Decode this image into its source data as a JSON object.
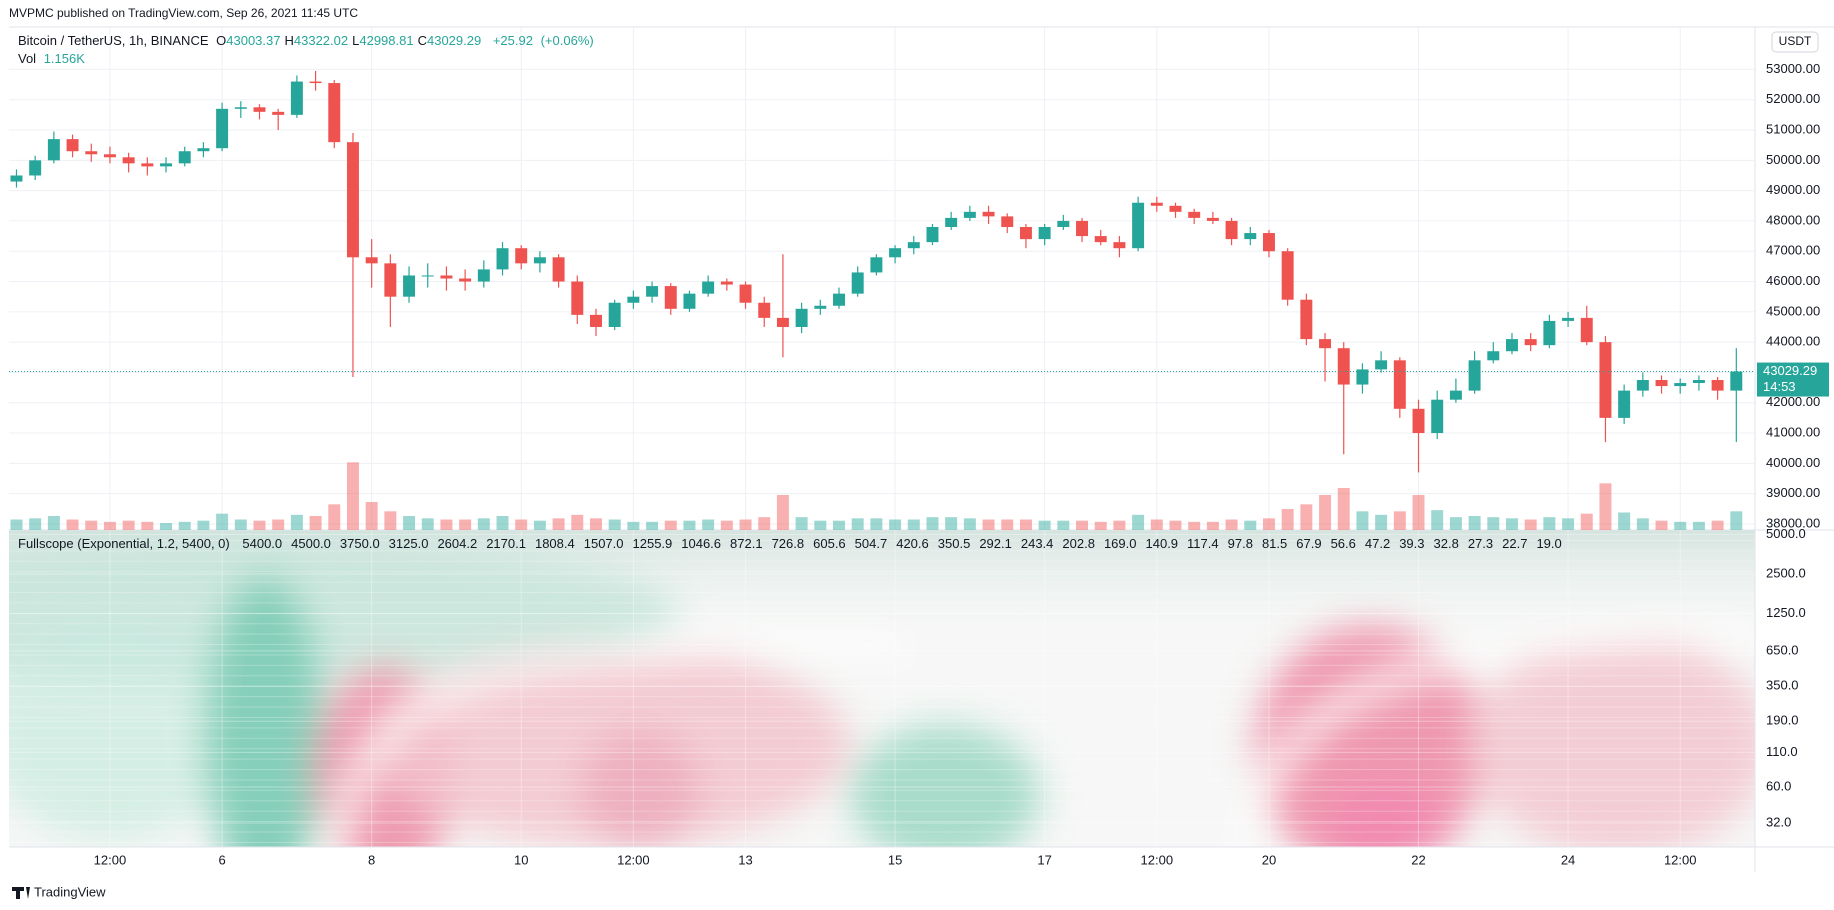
{
  "chart_data": {
    "type": "candlestick",
    "source": "MVPMC published on TradingView.com, Sep 26, 2021 11:45 UTC",
    "symbol": "Bitcoin / TetherUS, 1h, BINANCE",
    "legend": [
      {
        "key": "O",
        "value": 43003.37
      },
      {
        "key": "H",
        "value": 43322.02
      },
      {
        "key": "L",
        "value": 42998.81
      },
      {
        "key": "C",
        "value": 43029.29
      }
    ],
    "change": {
      "value": 25.92,
      "label": "+25.92"
    },
    "change_pct": {
      "value": 0.06,
      "label": "(+0.06%)"
    },
    "volume_label": "Vol",
    "volume_last": {
      "value": 1156,
      "label": "1.156K"
    },
    "currency": "USDT",
    "countdown": "14:53",
    "branding": "TradingView",
    "up_color": "#26a69a",
    "down_color": "#ef5350",
    "grid": true,
    "xlim": [
      3.15,
      26.5
    ],
    "xticks": [
      {
        "value": 4.5,
        "label": "12:00"
      },
      6,
      8,
      10,
      {
        "value": 11.5,
        "label": "12:00"
      },
      13,
      15,
      17,
      {
        "value": 18.5,
        "label": "12:00"
      },
      20,
      22,
      24,
      {
        "value": 25.5,
        "label": "12:00"
      }
    ],
    "ylim": [
      37800,
      54400
    ],
    "yticks": [
      {
        "value": 38000,
        "label": "38000.00"
      },
      {
        "value": 39000,
        "label": "39000.00"
      },
      {
        "value": 40000,
        "label": "40000.00"
      },
      {
        "value": 41000,
        "label": "41000.00"
      },
      {
        "value": 42000,
        "label": "42000.00"
      },
      {
        "value": 43000,
        "label": "43000.00"
      },
      {
        "value": 44000,
        "label": "44000.00"
      },
      {
        "value": 45000,
        "label": "45000.00"
      },
      {
        "value": 46000,
        "label": "46000.00"
      },
      {
        "value": 47000,
        "label": "47000.00"
      },
      {
        "value": 48000,
        "label": "48000.00"
      },
      {
        "value": 49000,
        "label": "49000.00"
      },
      {
        "value": 50000,
        "label": "50000.00"
      },
      {
        "value": 51000,
        "label": "51000.00"
      },
      {
        "value": 52000,
        "label": "52000.00"
      },
      {
        "value": 53000,
        "label": "53000.00"
      }
    ],
    "vlim": [
      0,
      60000
    ],
    "candles": [
      {
        "x": 3.25,
        "o": 49300,
        "h": 49700,
        "l": 49100,
        "c": 49500,
        "v": 9000
      },
      {
        "x": 3.5,
        "o": 49500,
        "h": 50150,
        "l": 49350,
        "c": 50000,
        "v": 10000
      },
      {
        "x": 3.75,
        "o": 50000,
        "h": 50950,
        "l": 49900,
        "c": 50700,
        "v": 12000
      },
      {
        "x": 4.0,
        "o": 50700,
        "h": 50850,
        "l": 50100,
        "c": 50300,
        "v": 9000
      },
      {
        "x": 4.25,
        "o": 50300,
        "h": 50550,
        "l": 49950,
        "c": 50200,
        "v": 8000
      },
      {
        "x": 4.5,
        "o": 50200,
        "h": 50450,
        "l": 49900,
        "c": 50100,
        "v": 7000
      },
      {
        "x": 4.75,
        "o": 50100,
        "h": 50250,
        "l": 49600,
        "c": 49900,
        "v": 8000
      },
      {
        "x": 5.0,
        "o": 49900,
        "h": 50100,
        "l": 49500,
        "c": 49800,
        "v": 7000
      },
      {
        "x": 5.25,
        "o": 49800,
        "h": 50100,
        "l": 49600,
        "c": 49900,
        "v": 6000
      },
      {
        "x": 5.5,
        "o": 49900,
        "h": 50450,
        "l": 49800,
        "c": 50300,
        "v": 7000
      },
      {
        "x": 5.75,
        "o": 50300,
        "h": 50600,
        "l": 50100,
        "c": 50400,
        "v": 8000
      },
      {
        "x": 6.0,
        "o": 50400,
        "h": 51900,
        "l": 50300,
        "c": 51700,
        "v": 14000
      },
      {
        "x": 6.25,
        "o": 51700,
        "h": 51950,
        "l": 51400,
        "c": 51750,
        "v": 9000
      },
      {
        "x": 6.5,
        "o": 51750,
        "h": 51850,
        "l": 51350,
        "c": 51600,
        "v": 8000
      },
      {
        "x": 6.75,
        "o": 51600,
        "h": 51700,
        "l": 51000,
        "c": 51500,
        "v": 9000
      },
      {
        "x": 7.0,
        "o": 51500,
        "h": 52800,
        "l": 51400,
        "c": 52600,
        "v": 13000
      },
      {
        "x": 7.25,
        "o": 52600,
        "h": 52950,
        "l": 52300,
        "c": 52550,
        "v": 12000
      },
      {
        "x": 7.5,
        "o": 52550,
        "h": 52650,
        "l": 50400,
        "c": 50600,
        "v": 22000
      },
      {
        "x": 7.75,
        "o": 50600,
        "h": 50900,
        "l": 42850,
        "c": 46800,
        "v": 58000
      },
      {
        "x": 8.0,
        "o": 46800,
        "h": 47400,
        "l": 45800,
        "c": 46600,
        "v": 24000
      },
      {
        "x": 8.25,
        "o": 46600,
        "h": 46900,
        "l": 44500,
        "c": 45500,
        "v": 16000
      },
      {
        "x": 8.5,
        "o": 45500,
        "h": 46500,
        "l": 45300,
        "c": 46200,
        "v": 12000
      },
      {
        "x": 8.75,
        "o": 46200,
        "h": 46600,
        "l": 45800,
        "c": 46200,
        "v": 10000
      },
      {
        "x": 9.0,
        "o": 46200,
        "h": 46500,
        "l": 45700,
        "c": 46100,
        "v": 9000
      },
      {
        "x": 9.25,
        "o": 46100,
        "h": 46400,
        "l": 45700,
        "c": 46000,
        "v": 9000
      },
      {
        "x": 9.5,
        "o": 46000,
        "h": 46700,
        "l": 45800,
        "c": 46400,
        "v": 10000
      },
      {
        "x": 9.75,
        "o": 46400,
        "h": 47300,
        "l": 46200,
        "c": 47100,
        "v": 12000
      },
      {
        "x": 10.0,
        "o": 47100,
        "h": 47200,
        "l": 46400,
        "c": 46600,
        "v": 9000
      },
      {
        "x": 10.25,
        "o": 46600,
        "h": 47000,
        "l": 46300,
        "c": 46800,
        "v": 8000
      },
      {
        "x": 10.5,
        "o": 46800,
        "h": 46900,
        "l": 45800,
        "c": 46000,
        "v": 10000
      },
      {
        "x": 10.75,
        "o": 46000,
        "h": 46200,
        "l": 44600,
        "c": 44900,
        "v": 13000
      },
      {
        "x": 11.0,
        "o": 44900,
        "h": 45100,
        "l": 44200,
        "c": 44500,
        "v": 10000
      },
      {
        "x": 11.25,
        "o": 44500,
        "h": 45400,
        "l": 44400,
        "c": 45300,
        "v": 9000
      },
      {
        "x": 11.5,
        "o": 45300,
        "h": 45700,
        "l": 45100,
        "c": 45500,
        "v": 7000
      },
      {
        "x": 11.75,
        "o": 45500,
        "h": 46000,
        "l": 45300,
        "c": 45850,
        "v": 7000
      },
      {
        "x": 12.0,
        "o": 45850,
        "h": 45950,
        "l": 44900,
        "c": 45100,
        "v": 8000
      },
      {
        "x": 12.25,
        "o": 45100,
        "h": 45700,
        "l": 45000,
        "c": 45600,
        "v": 8000
      },
      {
        "x": 12.5,
        "o": 45600,
        "h": 46200,
        "l": 45500,
        "c": 46000,
        "v": 9000
      },
      {
        "x": 12.75,
        "o": 46000,
        "h": 46100,
        "l": 45700,
        "c": 45900,
        "v": 8000
      },
      {
        "x": 13.0,
        "o": 45900,
        "h": 46000,
        "l": 45100,
        "c": 45300,
        "v": 9000
      },
      {
        "x": 13.25,
        "o": 45300,
        "h": 45500,
        "l": 44500,
        "c": 44800,
        "v": 11000
      },
      {
        "x": 13.5,
        "o": 44800,
        "h": 46900,
        "l": 43500,
        "c": 44500,
        "v": 30000
      },
      {
        "x": 13.75,
        "o": 44500,
        "h": 45300,
        "l": 44300,
        "c": 45100,
        "v": 11000
      },
      {
        "x": 14.0,
        "o": 45100,
        "h": 45400,
        "l": 44900,
        "c": 45200,
        "v": 8000
      },
      {
        "x": 14.25,
        "o": 45200,
        "h": 45800,
        "l": 45100,
        "c": 45600,
        "v": 8000
      },
      {
        "x": 14.5,
        "o": 45600,
        "h": 46500,
        "l": 45500,
        "c": 46300,
        "v": 10000
      },
      {
        "x": 14.75,
        "o": 46300,
        "h": 46900,
        "l": 46200,
        "c": 46800,
        "v": 10000
      },
      {
        "x": 15.0,
        "o": 46800,
        "h": 47200,
        "l": 46600,
        "c": 47100,
        "v": 9000
      },
      {
        "x": 15.25,
        "o": 47100,
        "h": 47500,
        "l": 46900,
        "c": 47300,
        "v": 9000
      },
      {
        "x": 15.5,
        "o": 47300,
        "h": 47900,
        "l": 47200,
        "c": 47800,
        "v": 11000
      },
      {
        "x": 15.75,
        "o": 47800,
        "h": 48300,
        "l": 47700,
        "c": 48100,
        "v": 11000
      },
      {
        "x": 16.0,
        "o": 48100,
        "h": 48500,
        "l": 48000,
        "c": 48300,
        "v": 10000
      },
      {
        "x": 16.25,
        "o": 48300,
        "h": 48500,
        "l": 47900,
        "c": 48150,
        "v": 9000
      },
      {
        "x": 16.5,
        "o": 48150,
        "h": 48250,
        "l": 47600,
        "c": 47800,
        "v": 9000
      },
      {
        "x": 16.75,
        "o": 47800,
        "h": 47900,
        "l": 47100,
        "c": 47400,
        "v": 9000
      },
      {
        "x": 17.0,
        "o": 47400,
        "h": 47900,
        "l": 47200,
        "c": 47800,
        "v": 8000
      },
      {
        "x": 17.25,
        "o": 47800,
        "h": 48200,
        "l": 47700,
        "c": 48000,
        "v": 8000
      },
      {
        "x": 17.5,
        "o": 48000,
        "h": 48100,
        "l": 47300,
        "c": 47500,
        "v": 8000
      },
      {
        "x": 17.75,
        "o": 47500,
        "h": 47700,
        "l": 47200,
        "c": 47300,
        "v": 7000
      },
      {
        "x": 18.0,
        "o": 47300,
        "h": 47500,
        "l": 46800,
        "c": 47100,
        "v": 8000
      },
      {
        "x": 18.25,
        "o": 47100,
        "h": 48800,
        "l": 47000,
        "c": 48600,
        "v": 13000
      },
      {
        "x": 18.5,
        "o": 48600,
        "h": 48800,
        "l": 48300,
        "c": 48500,
        "v": 9000
      },
      {
        "x": 18.75,
        "o": 48500,
        "h": 48600,
        "l": 48100,
        "c": 48300,
        "v": 8000
      },
      {
        "x": 19.0,
        "o": 48300,
        "h": 48400,
        "l": 47900,
        "c": 48100,
        "v": 7000
      },
      {
        "x": 19.25,
        "o": 48100,
        "h": 48300,
        "l": 47900,
        "c": 48000,
        "v": 7000
      },
      {
        "x": 19.5,
        "o": 48000,
        "h": 48100,
        "l": 47200,
        "c": 47400,
        "v": 9000
      },
      {
        "x": 19.75,
        "o": 47400,
        "h": 47800,
        "l": 47200,
        "c": 47600,
        "v": 8000
      },
      {
        "x": 20.0,
        "o": 47600,
        "h": 47700,
        "l": 46800,
        "c": 47000,
        "v": 10000
      },
      {
        "x": 20.25,
        "o": 47000,
        "h": 47100,
        "l": 45200,
        "c": 45400,
        "v": 18000
      },
      {
        "x": 20.5,
        "o": 45400,
        "h": 45600,
        "l": 43900,
        "c": 44100,
        "v": 22000
      },
      {
        "x": 20.75,
        "o": 44100,
        "h": 44300,
        "l": 42700,
        "c": 43800,
        "v": 30000
      },
      {
        "x": 21.0,
        "o": 43800,
        "h": 44000,
        "l": 40300,
        "c": 42600,
        "v": 36000
      },
      {
        "x": 21.25,
        "o": 42600,
        "h": 43300,
        "l": 42300,
        "c": 43100,
        "v": 16000
      },
      {
        "x": 21.5,
        "o": 43100,
        "h": 43700,
        "l": 43000,
        "c": 43400,
        "v": 13000
      },
      {
        "x": 21.75,
        "o": 43400,
        "h": 43500,
        "l": 41500,
        "c": 41800,
        "v": 16000
      },
      {
        "x": 22.0,
        "o": 41800,
        "h": 42100,
        "l": 39700,
        "c": 41000,
        "v": 30000
      },
      {
        "x": 22.25,
        "o": 41000,
        "h": 42400,
        "l": 40800,
        "c": 42100,
        "v": 17000
      },
      {
        "x": 22.5,
        "o": 42100,
        "h": 42800,
        "l": 42000,
        "c": 42400,
        "v": 11000
      },
      {
        "x": 22.75,
        "o": 42400,
        "h": 43700,
        "l": 42300,
        "c": 43400,
        "v": 12000
      },
      {
        "x": 23.0,
        "o": 43400,
        "h": 44000,
        "l": 43300,
        "c": 43700,
        "v": 11000
      },
      {
        "x": 23.25,
        "o": 43700,
        "h": 44300,
        "l": 43600,
        "c": 44100,
        "v": 10000
      },
      {
        "x": 23.5,
        "o": 44100,
        "h": 44300,
        "l": 43700,
        "c": 43900,
        "v": 9000
      },
      {
        "x": 23.75,
        "o": 43900,
        "h": 44900,
        "l": 43800,
        "c": 44700,
        "v": 11000
      },
      {
        "x": 24.0,
        "o": 44700,
        "h": 45000,
        "l": 44500,
        "c": 44800,
        "v": 10000
      },
      {
        "x": 24.25,
        "o": 44800,
        "h": 45200,
        "l": 43900,
        "c": 44000,
        "v": 14000
      },
      {
        "x": 24.5,
        "o": 44000,
        "h": 44200,
        "l": 40700,
        "c": 41500,
        "v": 40000
      },
      {
        "x": 24.75,
        "o": 41500,
        "h": 42600,
        "l": 41300,
        "c": 42400,
        "v": 15000
      },
      {
        "x": 25.0,
        "o": 42400,
        "h": 43000,
        "l": 42200,
        "c": 42750,
        "v": 10000
      },
      {
        "x": 25.25,
        "o": 42750,
        "h": 42900,
        "l": 42300,
        "c": 42550,
        "v": 8000
      },
      {
        "x": 25.5,
        "o": 42550,
        "h": 42800,
        "l": 42300,
        "c": 42650,
        "v": 7000
      },
      {
        "x": 25.75,
        "o": 42650,
        "h": 42900,
        "l": 42400,
        "c": 42750,
        "v": 7000
      },
      {
        "x": 26.0,
        "o": 42750,
        "h": 42850,
        "l": 42100,
        "c": 42400,
        "v": 8000
      },
      {
        "x": 26.25,
        "o": 42400,
        "h": 43800,
        "l": 40700,
        "c": 43029.29,
        "v": 16000
      }
    ],
    "indicator": {
      "type": "heatmap",
      "title": "Fullscope (Exponential, 1.2, 5400, 0)",
      "log": true,
      "ylim": [
        21,
        5400
      ],
      "yticks": [
        {
          "value": 5000,
          "label": "5000.0"
        },
        {
          "value": 2500,
          "label": "2500.0"
        },
        {
          "value": 1250,
          "label": "1250.0"
        },
        {
          "value": 650,
          "label": "650.0"
        },
        {
          "value": 350,
          "label": "350.0"
        },
        {
          "value": 190,
          "label": "190.0"
        },
        {
          "value": 110,
          "label": "110.0"
        },
        {
          "value": 60,
          "label": "60.0"
        },
        {
          "value": 32,
          "label": "32.0"
        }
      ],
      "periods": [
        {
          "value": 5400,
          "label": "5400.0"
        },
        {
          "value": 4500,
          "label": "4500.0"
        },
        {
          "value": 3750,
          "label": "3750.0"
        },
        {
          "value": 3125,
          "label": "3125.0"
        },
        {
          "value": 2604.2,
          "label": "2604.2"
        },
        {
          "value": 2170.1,
          "label": "2170.1"
        },
        {
          "value": 1808.4,
          "label": "1808.4"
        },
        {
          "value": 1507,
          "label": "1507.0"
        },
        {
          "value": 1255.9,
          "label": "1255.9"
        },
        {
          "value": 1046.6,
          "label": "1046.6"
        },
        {
          "value": 872.1,
          "label": "872.1"
        },
        {
          "value": 726.8,
          "label": "726.8"
        },
        {
          "value": 605.6,
          "label": "605.6"
        },
        {
          "value": 504.7,
          "label": "504.7"
        },
        {
          "value": 420.6,
          "label": "420.6"
        },
        {
          "value": 350.5,
          "label": "350.5"
        },
        {
          "value": 292.1,
          "label": "292.1"
        },
        {
          "value": 243.4,
          "label": "243.4"
        },
        {
          "value": 202.8,
          "label": "202.8"
        },
        {
          "value": 169,
          "label": "169.0"
        },
        {
          "value": 140.9,
          "label": "140.9"
        },
        {
          "value": 117.4,
          "label": "117.4"
        },
        {
          "value": 97.8,
          "label": "97.8"
        },
        {
          "value": 81.5,
          "label": "81.5"
        },
        {
          "value": 67.9,
          "label": "67.9"
        },
        {
          "value": 56.6,
          "label": "56.6"
        },
        {
          "value": 47.2,
          "label": "47.2"
        },
        {
          "value": 39.3,
          "label": "39.3"
        },
        {
          "value": 32.8,
          "label": "32.8"
        },
        {
          "value": 27.3,
          "label": "27.3"
        },
        {
          "value": 22.7,
          "label": "22.7"
        },
        {
          "value": 19,
          "label": "19.0"
        }
      ]
    }
  }
}
